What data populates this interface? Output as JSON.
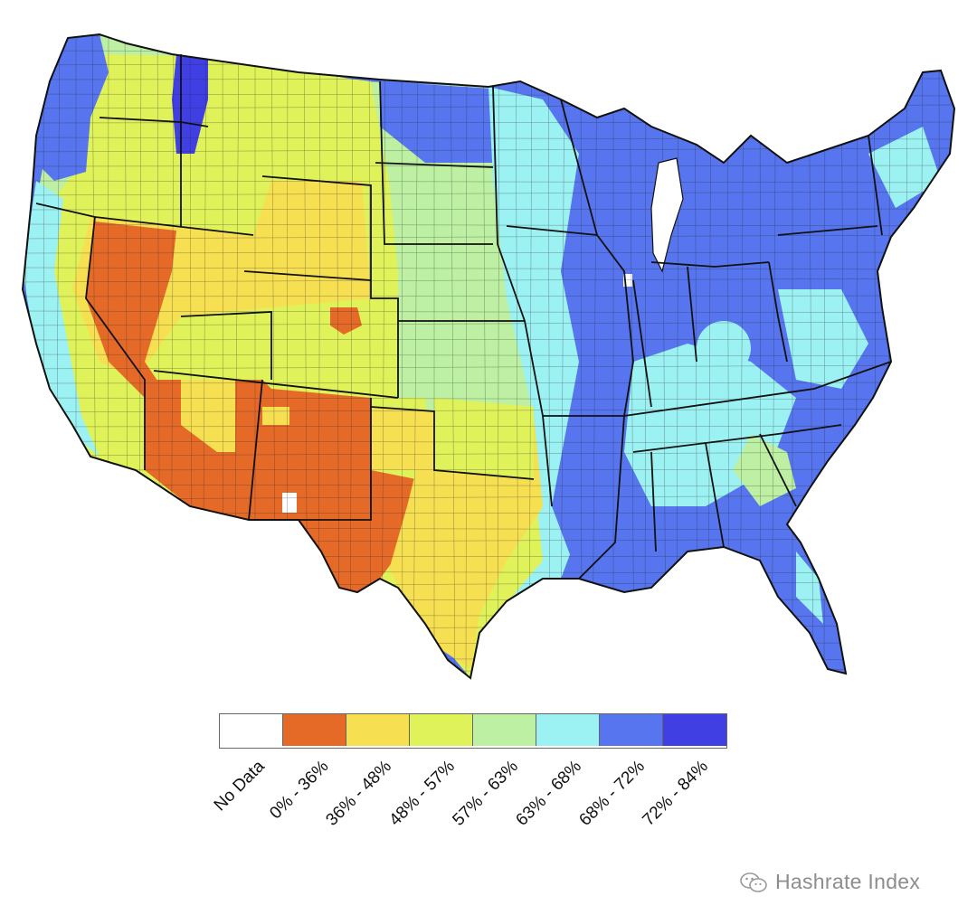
{
  "map": {
    "legend": [
      {
        "label": "No Data",
        "color": "#ffffff"
      },
      {
        "label": "0% - 36%",
        "color": "#e56a28"
      },
      {
        "label": "36% - 48%",
        "color": "#f6e052"
      },
      {
        "label": "48% - 57%",
        "color": "#dff25a"
      },
      {
        "label": "57% - 63%",
        "color": "#bdf0a2"
      },
      {
        "label": "63% - 68%",
        "color": "#9cf2f2"
      },
      {
        "label": "68% - 72%",
        "color": "#5675ee"
      },
      {
        "label": "72% - 84%",
        "color": "#3f3fe4"
      }
    ],
    "colors": {
      "border": "#111111",
      "county_line": "#2a2a2a"
    }
  },
  "watermark": {
    "text": "Hashrate Index",
    "icon": "wechat-icon"
  }
}
